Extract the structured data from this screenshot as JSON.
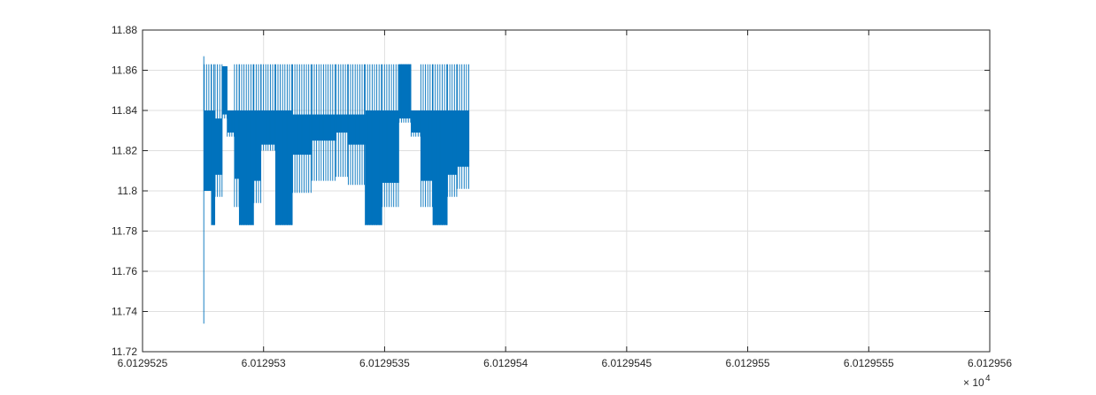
{
  "chart_data": {
    "type": "line",
    "title": "",
    "xlabel": "",
    "ylabel": "",
    "xlim": [
      60129.525,
      60129.56
    ],
    "ylim": [
      11.72,
      11.88
    ],
    "grid": true,
    "x_ticks": [
      60129.525,
      60129.53,
      60129.535,
      60129.54,
      60129.545,
      60129.55,
      60129.555,
      60129.56
    ],
    "x_tick_labels": [
      "6.0129525",
      "6.012953",
      "6.0129535",
      "6.012954",
      "6.0129545",
      "6.012955",
      "6.0129555",
      "6.012956"
    ],
    "x_exponent_label": "× 10",
    "x_exponent_power": "4",
    "y_ticks": [
      11.72,
      11.74,
      11.76,
      11.78,
      11.8,
      11.82,
      11.84,
      11.86,
      11.88
    ],
    "y_tick_labels": [
      "11.72",
      "11.74",
      "11.76",
      "11.78",
      "11.8",
      "11.82",
      "11.84",
      "11.86",
      "11.88"
    ],
    "series": [
      {
        "color": "#0072bd",
        "note_segments": "oscillating signal envelope, per x-segment: [x_start, x_end, upper, lower, dense_top, dense_bottom]",
        "segments": [
          [
            60129.52753,
            60129.52755,
            11.867,
            11.734,
            11.84,
            11.8
          ],
          [
            60129.52755,
            60129.52785,
            11.863,
            11.8,
            11.84,
            11.8
          ],
          [
            60129.52785,
            60129.528,
            11.863,
            11.783,
            11.84,
            11.783
          ],
          [
            60129.528,
            60129.5283,
            11.863,
            11.797,
            11.836,
            11.808
          ],
          [
            60129.5283,
            60129.5285,
            11.862,
            11.836,
            11.862,
            11.838
          ],
          [
            60129.5285,
            60129.5288,
            11.84,
            11.827,
            11.84,
            11.829
          ],
          [
            60129.5288,
            60129.529,
            11.863,
            11.792,
            11.84,
            11.806
          ],
          [
            60129.529,
            60129.5296,
            11.863,
            11.783,
            11.84,
            11.783
          ],
          [
            60129.5296,
            60129.5299,
            11.863,
            11.794,
            11.84,
            11.805
          ],
          [
            60129.5299,
            60129.5305,
            11.863,
            11.82,
            11.84,
            11.823
          ],
          [
            60129.5305,
            60129.5312,
            11.863,
            11.783,
            11.84,
            11.783
          ],
          [
            60129.5312,
            60129.532,
            11.863,
            11.799,
            11.838,
            11.818
          ],
          [
            60129.532,
            60129.533,
            11.863,
            11.805,
            11.838,
            11.825
          ],
          [
            60129.533,
            60129.5335,
            11.863,
            11.807,
            11.838,
            11.829
          ],
          [
            60129.5335,
            60129.5342,
            11.863,
            11.803,
            11.838,
            11.823
          ],
          [
            60129.5342,
            60129.5349,
            11.863,
            11.783,
            11.84,
            11.783
          ],
          [
            60129.5349,
            60129.5356,
            11.863,
            11.792,
            11.84,
            11.804
          ],
          [
            60129.5356,
            60129.5361,
            11.863,
            11.834,
            11.863,
            11.836
          ],
          [
            60129.5361,
            60129.5365,
            11.84,
            11.827,
            11.84,
            11.829
          ],
          [
            60129.5365,
            60129.537,
            11.863,
            11.792,
            11.84,
            11.805
          ],
          [
            60129.537,
            60129.5376,
            11.863,
            11.783,
            11.84,
            11.783
          ],
          [
            60129.5376,
            60129.538,
            11.863,
            11.797,
            11.84,
            11.808
          ],
          [
            60129.538,
            60129.5385,
            11.863,
            11.801,
            11.84,
            11.812
          ]
        ]
      }
    ]
  }
}
